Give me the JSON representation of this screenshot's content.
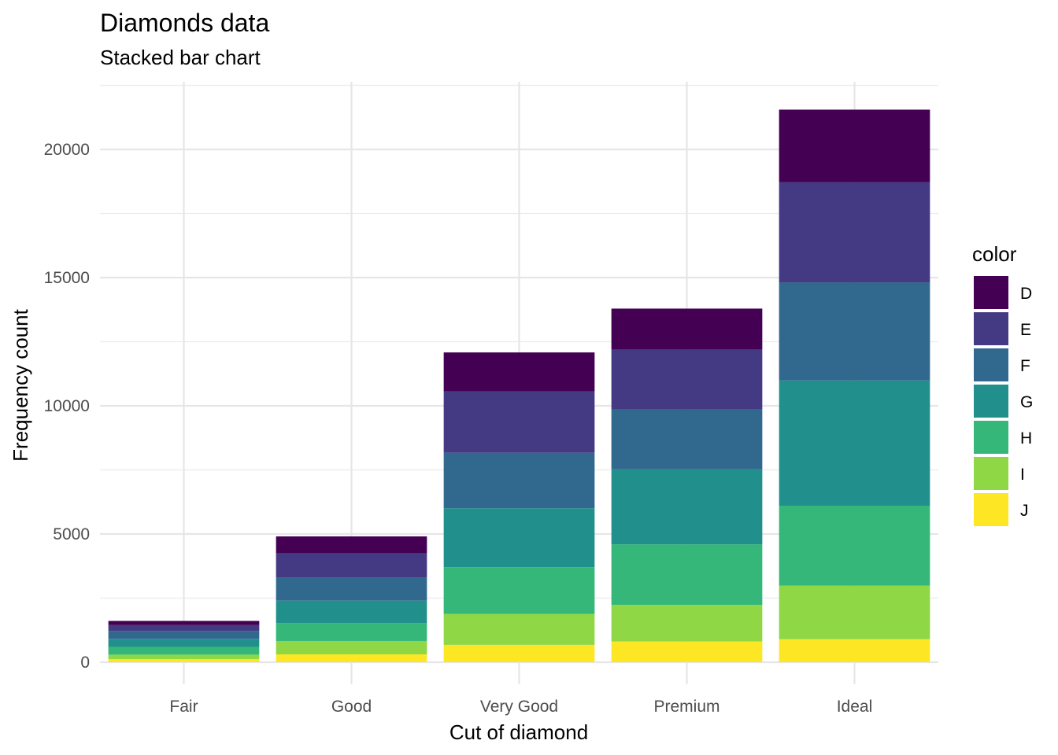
{
  "chart_data": {
    "type": "bar",
    "stacked": true,
    "title": "Diamonds data",
    "subtitle": "Stacked bar chart",
    "xlabel": "Cut of diamond",
    "ylabel": "Frequency count",
    "categories": [
      "Fair",
      "Good",
      "Very Good",
      "Premium",
      "Ideal"
    ],
    "ylim": [
      0,
      22500
    ],
    "yticks": [
      0,
      5000,
      10000,
      15000,
      20000
    ],
    "ytick_labels": [
      "0",
      "5000",
      "10000",
      "15000",
      "20000"
    ],
    "grid": true,
    "legend": {
      "title": "color",
      "position": "right"
    },
    "stack_order_bottom_to_top": [
      "J",
      "I",
      "H",
      "G",
      "F",
      "E",
      "D"
    ],
    "series": [
      {
        "name": "D",
        "color": "#440154",
        "values": [
          163,
          662,
          1513,
          1603,
          2834
        ]
      },
      {
        "name": "E",
        "color": "#443A83",
        "values": [
          224,
          933,
          2400,
          2337,
          3903
        ]
      },
      {
        "name": "F",
        "color": "#31688E",
        "values": [
          312,
          909,
          2164,
          2331,
          3826
        ]
      },
      {
        "name": "G",
        "color": "#21908C",
        "values": [
          314,
          871,
          2299,
          2924,
          4884
        ]
      },
      {
        "name": "H",
        "color": "#35B779",
        "values": [
          303,
          702,
          1824,
          2360,
          3115
        ]
      },
      {
        "name": "I",
        "color": "#8FD744",
        "values": [
          175,
          522,
          1204,
          1428,
          2093
        ]
      },
      {
        "name": "J",
        "color": "#FDE725",
        "values": [
          119,
          307,
          678,
          808,
          896
        ]
      }
    ]
  }
}
